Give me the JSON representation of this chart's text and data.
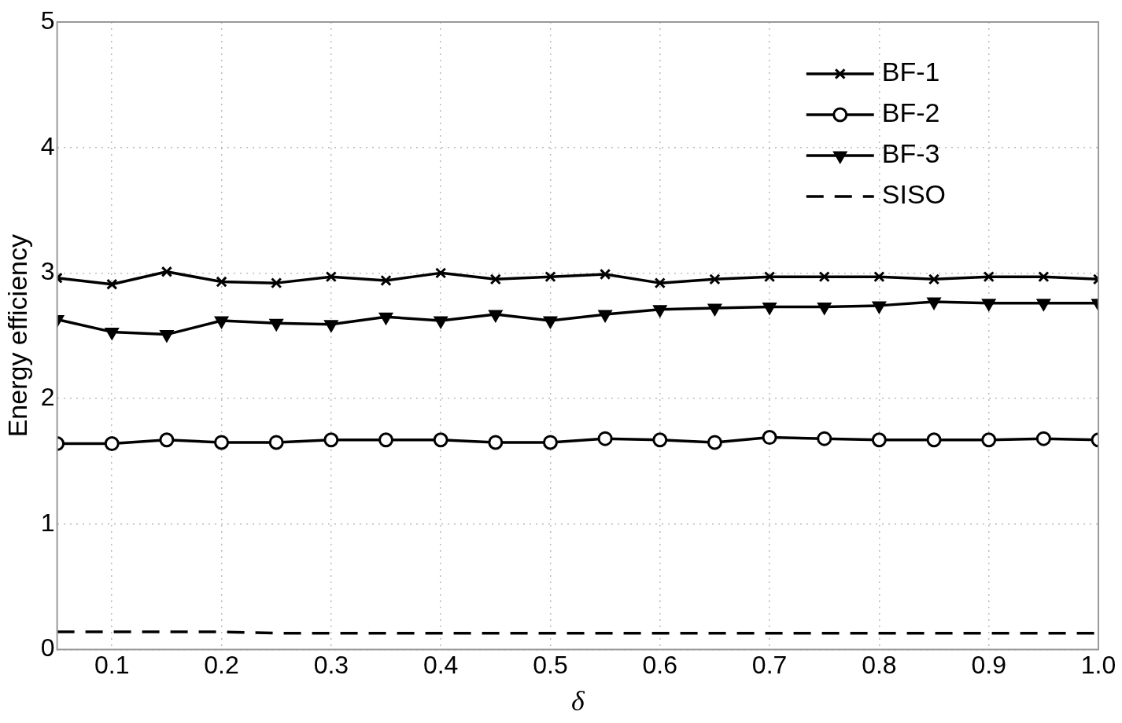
{
  "chart_data": {
    "type": "line",
    "xlabel": "δ",
    "ylabel": "Energy efficiency",
    "x": [
      0.05,
      0.1,
      0.15,
      0.2,
      0.25,
      0.3,
      0.35,
      0.4,
      0.45,
      0.5,
      0.55,
      0.6,
      0.65,
      0.7,
      0.75,
      0.8,
      0.85,
      0.9,
      0.95,
      1.0
    ],
    "series": [
      {
        "name": "BF-1",
        "color": "#000000",
        "marker": "cross",
        "line_style": "solid",
        "values": [
          2.96,
          2.91,
          3.01,
          2.93,
          2.92,
          2.97,
          2.94,
          3.0,
          2.95,
          2.97,
          2.99,
          2.92,
          2.95,
          2.97,
          2.97,
          2.97,
          2.95,
          2.97,
          2.97,
          2.95
        ]
      },
      {
        "name": "BF-2",
        "color": "#000000",
        "marker": "circle",
        "line_style": "solid",
        "values": [
          1.64,
          1.64,
          1.67,
          1.65,
          1.65,
          1.67,
          1.67,
          1.67,
          1.65,
          1.65,
          1.68,
          1.67,
          1.65,
          1.69,
          1.68,
          1.67,
          1.67,
          1.67,
          1.68,
          1.67
        ]
      },
      {
        "name": "BF-3",
        "color": "#000000",
        "marker": "triangle",
        "line_style": "solid",
        "values": [
          2.63,
          2.53,
          2.51,
          2.62,
          2.6,
          2.59,
          2.65,
          2.62,
          2.67,
          2.62,
          2.67,
          2.71,
          2.72,
          2.73,
          2.73,
          2.74,
          2.77,
          2.76,
          2.76,
          2.76
        ]
      },
      {
        "name": "SISO",
        "color": "#000000",
        "marker": "none",
        "line_style": "dashed",
        "values": [
          0.14,
          0.14,
          0.14,
          0.14,
          0.13,
          0.13,
          0.13,
          0.13,
          0.13,
          0.13,
          0.13,
          0.13,
          0.13,
          0.13,
          0.13,
          0.13,
          0.13,
          0.13,
          0.13,
          0.13
        ]
      }
    ],
    "xlim": [
      0.05,
      1.0
    ],
    "xticks": [
      0.1,
      0.2,
      0.3,
      0.4,
      0.5,
      0.6,
      0.7,
      0.8,
      0.9,
      {
        "value": 1.0,
        "label": "1.0"
      }
    ],
    "ylim": [
      0,
      5
    ],
    "yticks": [
      0,
      1,
      2,
      3,
      4,
      5
    ],
    "grid": true,
    "legend": "top right"
  }
}
